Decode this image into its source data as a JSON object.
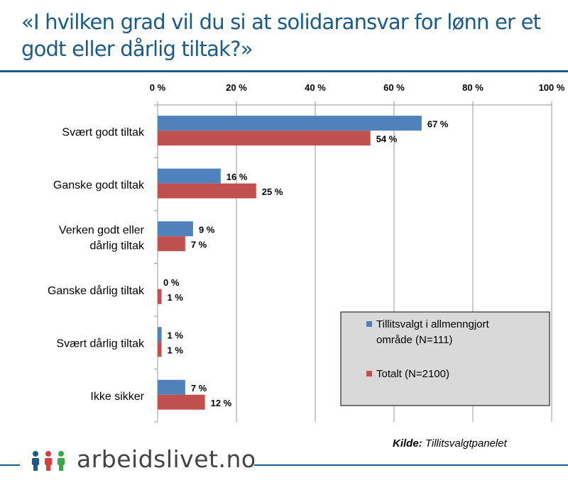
{
  "title": "«I hvilken grad vil du si at solidaransvar for lønn er et godt eller dårlig tiltak?»",
  "source_label": "Kilde:",
  "source_value": "Tillitsvalgtpanelet",
  "logo_text": "arbeidslivet.no",
  "chart_data": {
    "type": "bar",
    "orientation": "horizontal",
    "categories": [
      "Svært godt tiltak",
      "Ganske godt tiltak",
      "Verken godt eller dårlig tiltak",
      "Ganske dårlig tiltak",
      "Svært dårlig tiltak",
      "Ikke sikker"
    ],
    "series": [
      {
        "name": "Tillitsvalgt i allmenngjort område (N=111)",
        "color": "#4f81bd",
        "values": [
          67,
          16,
          9,
          0,
          1,
          7
        ]
      },
      {
        "name": "Totalt (N=2100)",
        "color": "#c0504d",
        "values": [
          54,
          25,
          7,
          1,
          1,
          12
        ]
      }
    ],
    "xlim": [
      0,
      100
    ],
    "xticks": [
      "0 %",
      "20 %",
      "40 %",
      "60 %",
      "80 %",
      "100 %"
    ],
    "grid": true,
    "legend_position": "bottom-right"
  }
}
